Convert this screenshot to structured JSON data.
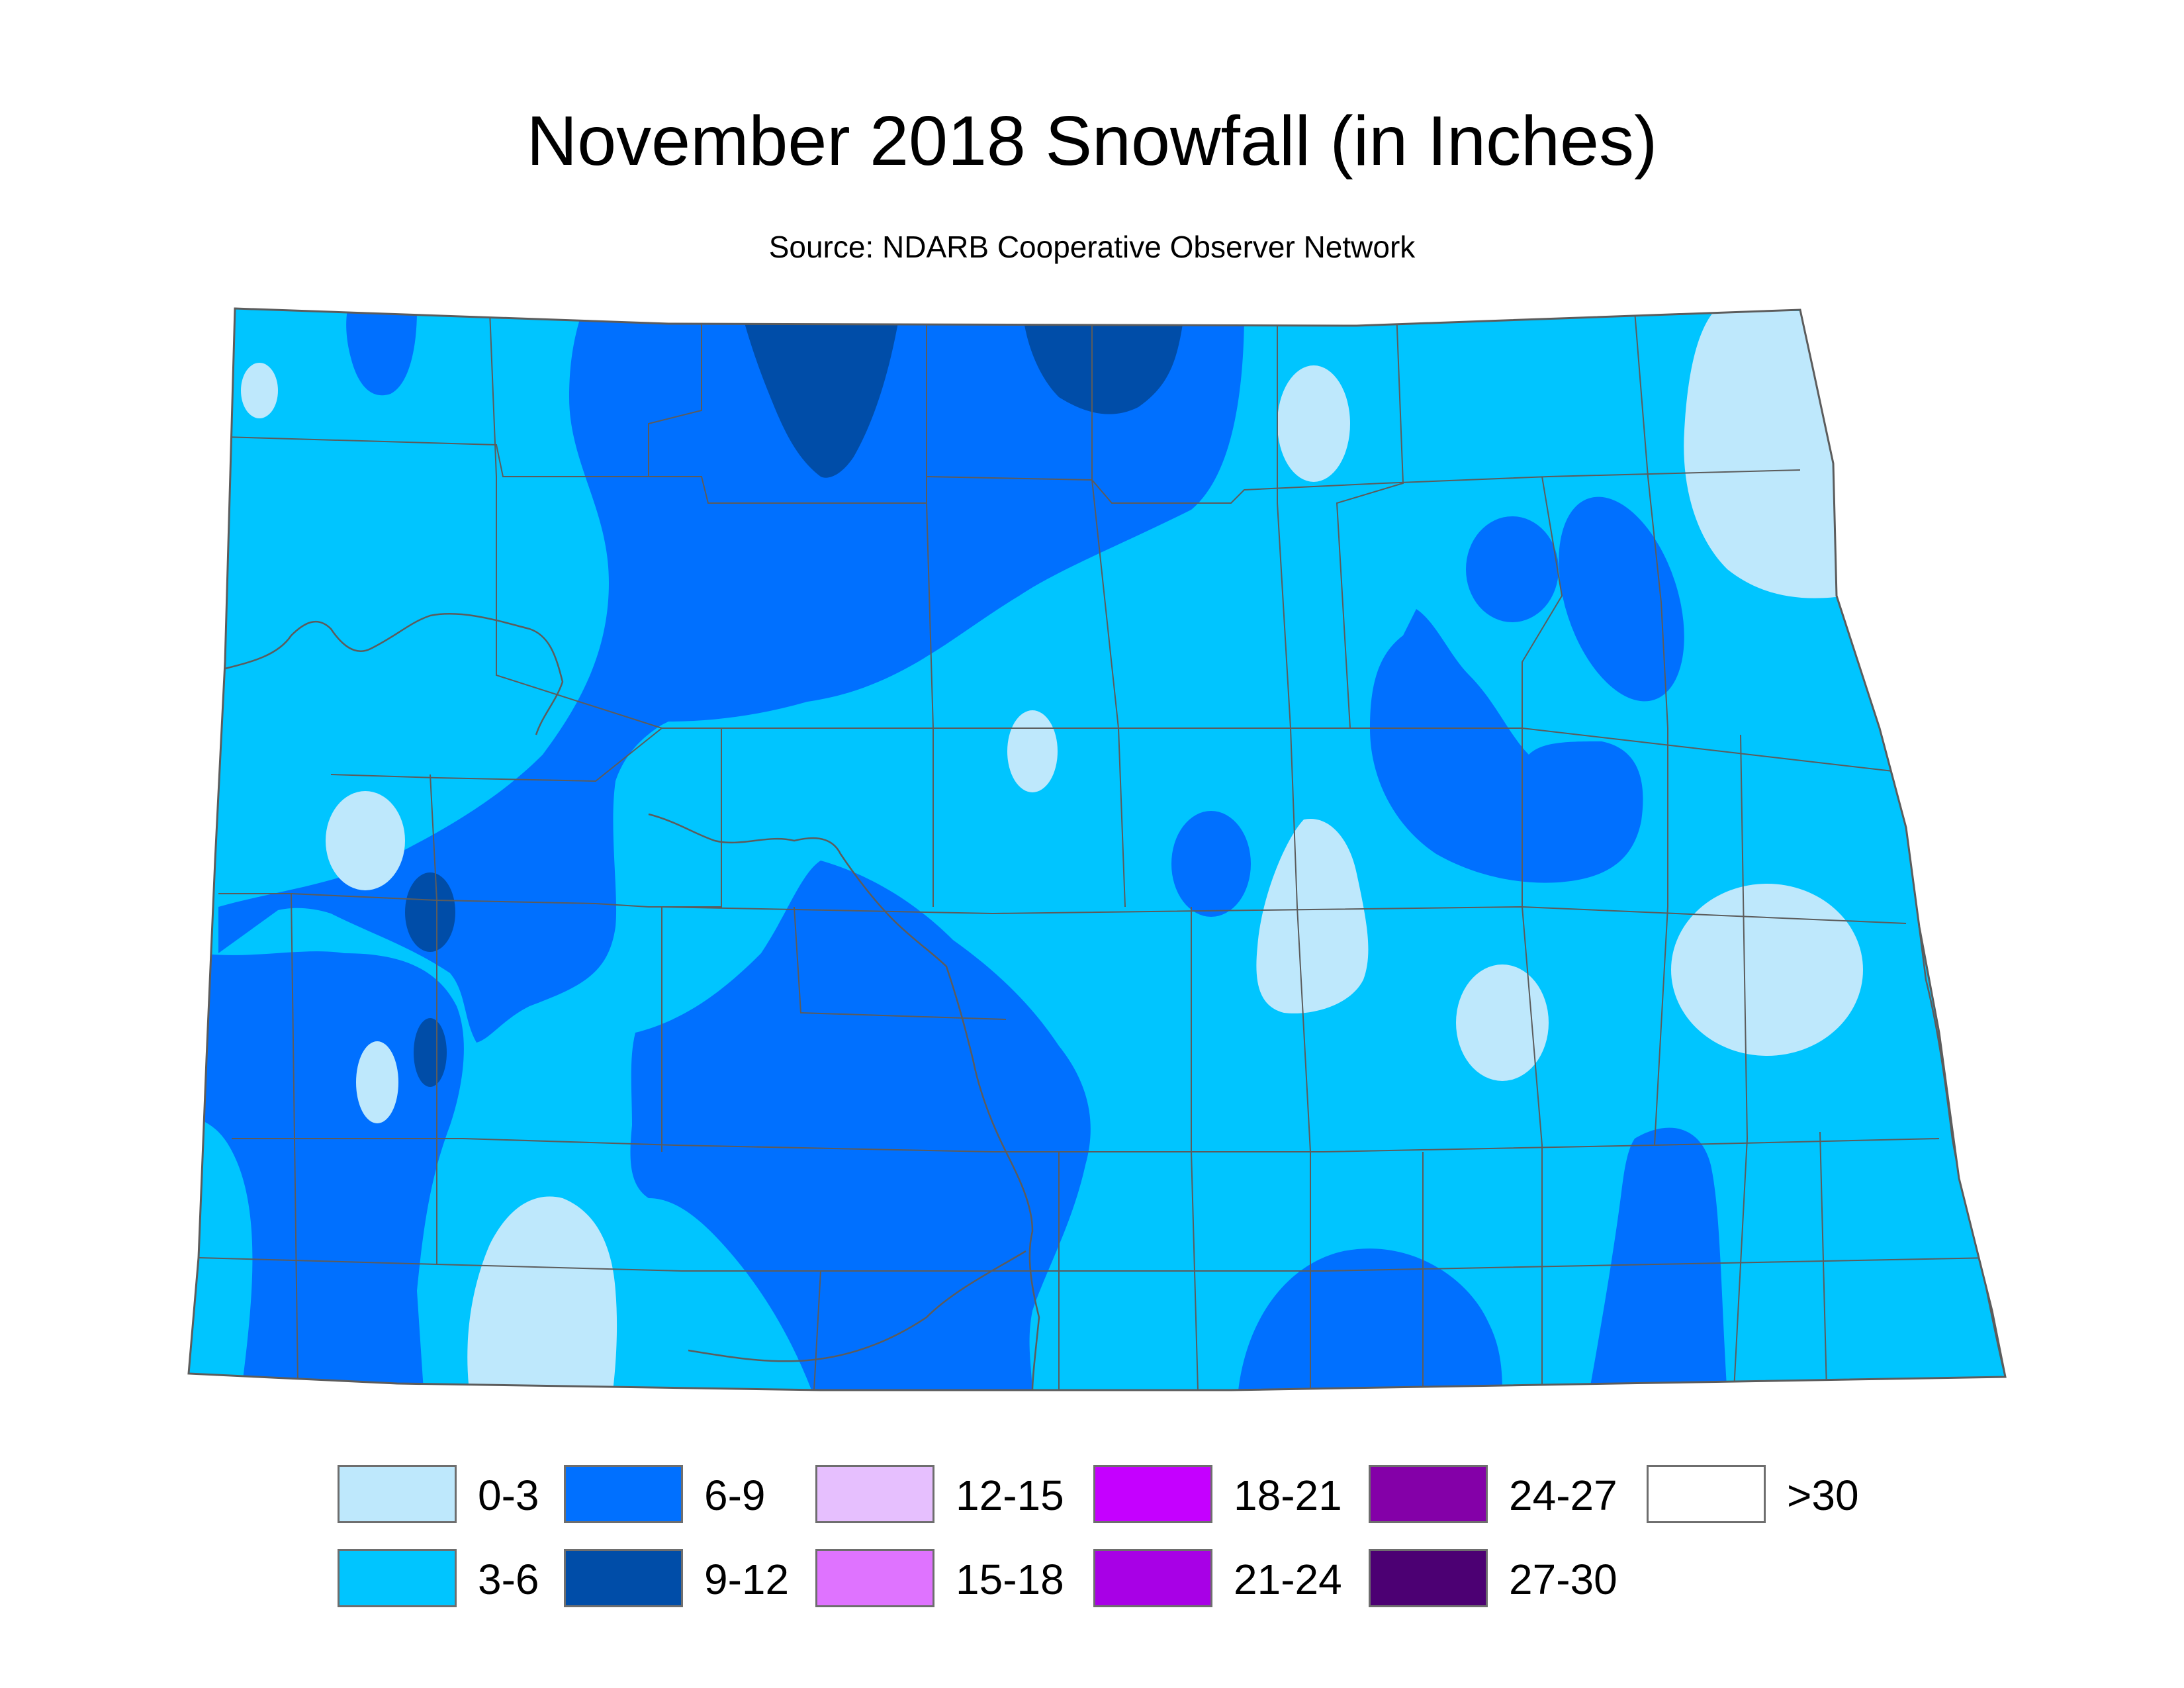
{
  "title": "November 2018 Snowfall (in Inches)",
  "subtitle": "Source: NDARB Cooperative Observer Network",
  "colors": {
    "c0_3": "#bee8fc",
    "c3_6": "#00c5ff",
    "c6_9": "#0070ff",
    "c9_12": "#004da8",
    "border": "#5c5c5c"
  },
  "legend": [
    {
      "label": "0-3",
      "color": "#bee8fc"
    },
    {
      "label": "3-6",
      "color": "#00c5ff"
    },
    {
      "label": "6-9",
      "color": "#0070ff"
    },
    {
      "label": "9-12",
      "color": "#004da8"
    },
    {
      "label": "12-15",
      "color": "#e6bffe"
    },
    {
      "label": "15-18",
      "color": "#df73ff"
    },
    {
      "label": "18-21",
      "color": "#c500ff"
    },
    {
      "label": "21-24",
      "color": "#a800e6"
    },
    {
      "label": "24-27",
      "color": "#8400a8"
    },
    {
      "label": "27-30",
      "color": "#4c0073"
    },
    {
      "label": ">30",
      "color": "#ffffff"
    }
  ]
}
